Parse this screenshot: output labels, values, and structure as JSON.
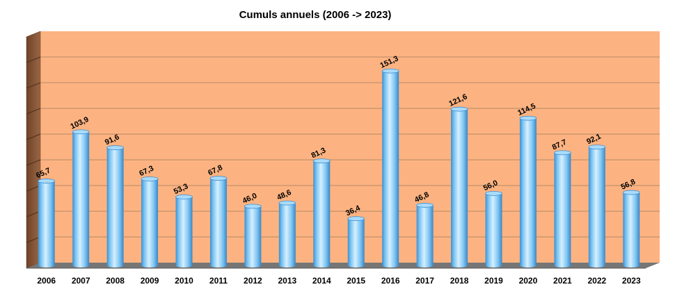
{
  "chart_data": {
    "type": "bar",
    "title": "Cumuls annuels (2006 -> 2023)",
    "categories": [
      "2006",
      "2007",
      "2008",
      "2009",
      "2010",
      "2011",
      "2012",
      "2013",
      "2014",
      "2015",
      "2016",
      "2017",
      "2018",
      "2019",
      "2020",
      "2021",
      "2022",
      "2023"
    ],
    "values": [
      65.7,
      103.9,
      91.6,
      67.3,
      53.3,
      67.8,
      46.0,
      48.6,
      81.3,
      36.4,
      151.3,
      46.8,
      121.6,
      56.0,
      114.5,
      87.7,
      92.1,
      56.8
    ],
    "value_labels": [
      "65,7",
      "103,9",
      "91,6",
      "67,3",
      "53,3",
      "67,8",
      "46,0",
      "48,6",
      "81,3",
      "36,4",
      "151,3",
      "46,8",
      "121,6",
      "56,0",
      "114,5",
      "87,7",
      "92,1",
      "56,8"
    ],
    "ylim": [
      0,
      180
    ],
    "grid": true,
    "legend": "none",
    "colors": {
      "plot_background": "#fdb381",
      "side_wall": "#8a5a3c",
      "floor": "#767676",
      "gridline": "#b48868",
      "bar_light": "#d6efff",
      "bar_mid": "#79c4f2",
      "bar_dark": "#3f8ed0"
    }
  }
}
